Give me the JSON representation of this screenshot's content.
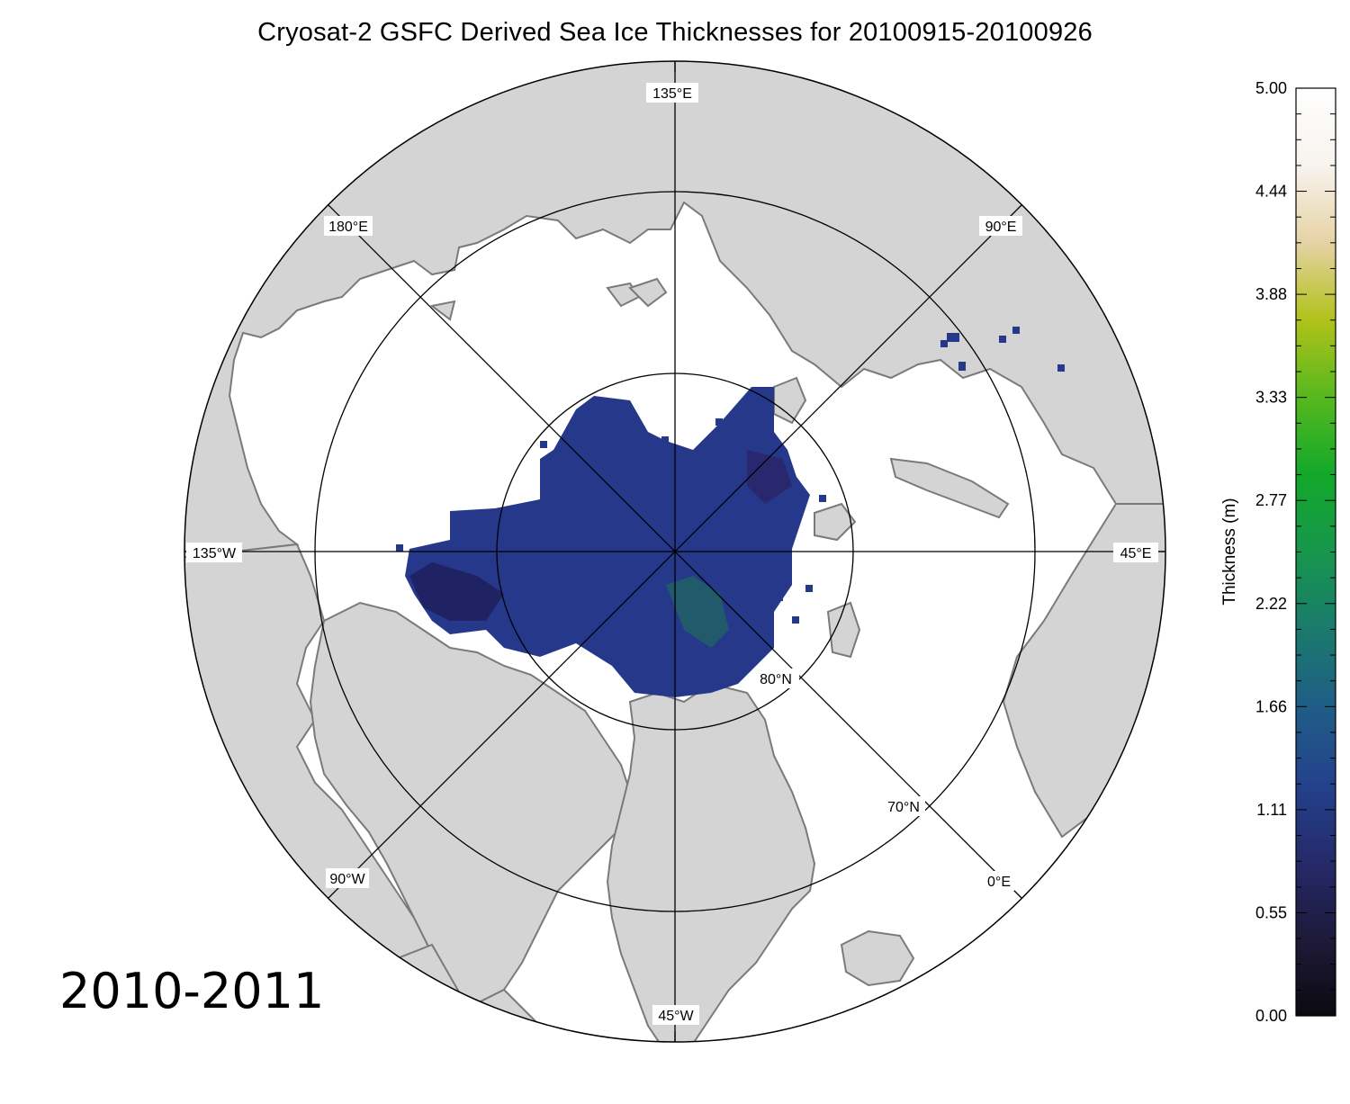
{
  "title": "Cryosat-2 GSFC Derived Sea Ice Thicknesses for 20100915-20100926",
  "season_label": "2010-2011",
  "meridian_labels": [
    "135°E",
    "90°E",
    "45°E",
    "0°E",
    "45°W",
    "90°W",
    "135°W",
    "180°E"
  ],
  "latitude_labels": [
    "80°N",
    "70°N"
  ],
  "colorbar": {
    "title": "Thickness (m)",
    "min": 0.0,
    "max": 5.0,
    "tick_labels": [
      "0.00",
      "0.55",
      "1.11",
      "1.66",
      "2.22",
      "2.77",
      "3.33",
      "3.88",
      "4.44",
      "5.00"
    ],
    "colormap": [
      "#0b0a0f",
      "#1e1a3a",
      "#252a6a",
      "#24428c",
      "#1f5d86",
      "#1a7a6c",
      "#17964c",
      "#12a82a",
      "#56b81e",
      "#b0c21a",
      "#e6d2a4",
      "#f7f3ee",
      "#ffffff"
    ]
  },
  "colors": {
    "land": "#d4d4d4",
    "coast": "#7a7a7a",
    "ocean": "#ffffff",
    "ice": "#25388a"
  }
}
